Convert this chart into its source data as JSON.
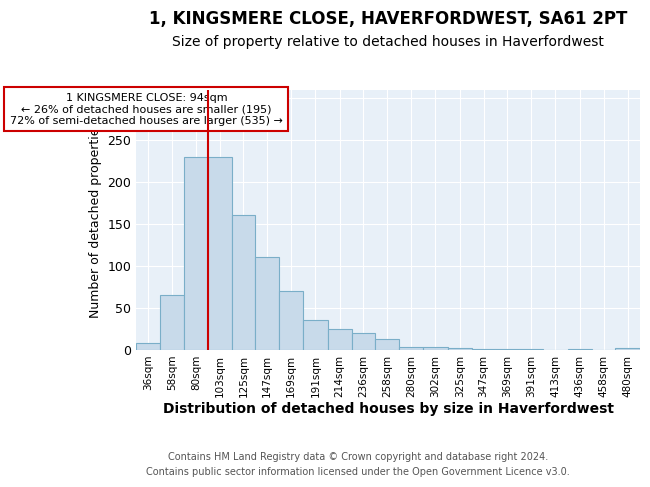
{
  "title": "1, KINGSMERE CLOSE, HAVERFORDWEST, SA61 2PT",
  "subtitle": "Size of property relative to detached houses in Haverfordwest",
  "xlabel": "Distribution of detached houses by size in Haverfordwest",
  "ylabel": "Number of detached properties",
  "footer1": "Contains HM Land Registry data © Crown copyright and database right 2024.",
  "footer2": "Contains public sector information licensed under the Open Government Licence v3.0.",
  "annotation_line1": "1 KINGSMERE CLOSE: 94sqm",
  "annotation_line2": "← 26% of detached houses are smaller (195)",
  "annotation_line3": "72% of semi-detached houses are larger (535) →",
  "bar_categories": [
    "36sqm",
    "58sqm",
    "80sqm",
    "103sqm",
    "125sqm",
    "147sqm",
    "169sqm",
    "191sqm",
    "214sqm",
    "236sqm",
    "258sqm",
    "280sqm",
    "302sqm",
    "325sqm",
    "347sqm",
    "369sqm",
    "391sqm",
    "413sqm",
    "436sqm",
    "458sqm",
    "480sqm"
  ],
  "bar_values": [
    8,
    65,
    230,
    230,
    160,
    110,
    70,
    35,
    25,
    20,
    12,
    3,
    3,
    2,
    1,
    1,
    1,
    0,
    1,
    0,
    2
  ],
  "bin_edges": [
    25,
    47,
    69,
    91,
    113,
    135,
    157,
    179,
    202,
    224,
    246,
    268,
    290,
    313,
    335,
    357,
    379,
    401,
    424,
    446,
    468,
    491
  ],
  "bar_color": "#c8daea",
  "bar_edge_color": "#7aaec8",
  "vline_x": 91,
  "vline_color": "#cc0000",
  "ylim": [
    0,
    310
  ],
  "yticks": [
    0,
    50,
    100,
    150,
    200,
    250,
    300
  ],
  "annotation_box_color": "#ffffff",
  "annotation_box_edge": "#cc0000",
  "bg_color": "#ffffff",
  "plot_bg_color": "#e8f0f8",
  "grid_color": "#ffffff",
  "title_fontsize": 12,
  "subtitle_fontsize": 10,
  "ylabel_fontsize": 9,
  "xlabel_fontsize": 10
}
